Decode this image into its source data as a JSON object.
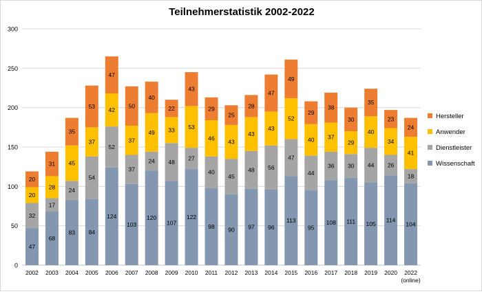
{
  "chart_data": {
    "type": "bar",
    "stacked": true,
    "title": "Teilnehmerstatistik 2002-2022",
    "xlabel": "",
    "ylabel": "",
    "ylim": [
      0,
      300
    ],
    "yticks": [
      "0",
      "50",
      "100",
      "150",
      "200",
      "250",
      "300"
    ],
    "grid": true,
    "legend_position": "right",
    "categories": [
      "2002",
      "2003",
      "2004",
      "2005",
      "2006",
      "2007",
      "2008",
      "2009",
      "2010",
      "2011",
      "2012",
      "2013",
      "2014",
      "2015",
      "2016",
      "2017",
      "2018",
      "2019",
      "2020",
      "2022"
    ],
    "category_sublabels": {
      "2022": "(online)"
    },
    "series": [
      {
        "name": "Wissenschaft",
        "color": "#8497b0",
        "values": [
          47,
          68,
          83,
          84,
          124,
          103,
          120,
          107,
          122,
          98,
          90,
          97,
          96,
          113,
          95,
          108,
          111,
          105,
          114,
          104
        ]
      },
      {
        "name": "Dienstleister",
        "color": "#a5a5a5",
        "values": [
          32,
          17,
          24,
          54,
          52,
          37,
          24,
          48,
          27,
          40,
          45,
          48,
          56,
          47,
          44,
          36,
          30,
          44,
          26,
          18
        ]
      },
      {
        "name": "Anwender",
        "color": "#ffc000",
        "values": [
          20,
          28,
          45,
          37,
          42,
          37,
          49,
          33,
          53,
          46,
          43,
          43,
          43,
          52,
          40,
          37,
          29,
          40,
          34,
          41
        ]
      },
      {
        "name": "Hersteller",
        "color": "#ed7d31",
        "values": [
          20,
          31,
          35,
          53,
          47,
          50,
          40,
          22,
          43,
          29,
          25,
          28,
          47,
          49,
          29,
          38,
          30,
          35,
          23,
          24
        ]
      }
    ],
    "legend_order": [
      "Hersteller",
      "Anwender",
      "Dienstleister",
      "Wissenschaft"
    ]
  }
}
